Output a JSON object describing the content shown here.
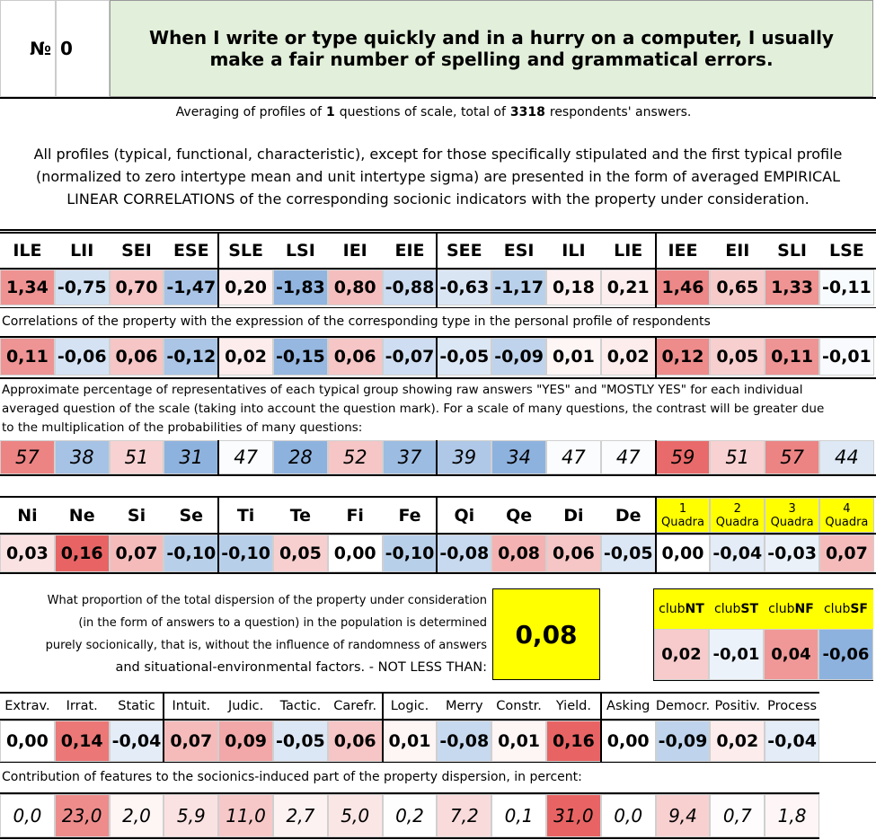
{
  "header": {
    "no": "№",
    "number": "0",
    "title": "When I write or type quickly and in a hurry on a computer, I usually make a fair number of spelling and grammatical errors."
  },
  "summary": {
    "pre": "Averaging of profiles of",
    "questions": "1",
    "mid": "questions of scale, total of",
    "respondents": "3318",
    "post": "respondents' answers."
  },
  "note": "All profiles (typical, functional, characteristic), except for those specifically stipulated and the first typical profile (normalized to zero intertype mean and unit intertype sigma) are presented in the form of averaged EMPIRICAL LINEAR CORRELATIONS of the corresponding socionic indicators with the property under consideration.",
  "types": {
    "headers": [
      "ILE",
      "LII",
      "SEI",
      "ESE",
      "SLE",
      "LSI",
      "IEI",
      "EIE",
      "SEE",
      "ESI",
      "ILI",
      "LIE",
      "IEE",
      "EII",
      "SLI",
      "LSE"
    ],
    "profile": [
      "1,34",
      "-0,75",
      "0,70",
      "-1,47",
      "0,20",
      "-1,83",
      "0,80",
      "-0,88",
      "-0,63",
      "-1,17",
      "0,18",
      "0,21",
      "1,46",
      "0,65",
      "1,33",
      "-0,11"
    ],
    "correlations_caption": "Correlations of the property with the expression of the corresponding type in the personal profile of respondents",
    "correlations": [
      "0,11",
      "-0,06",
      "0,06",
      "-0,12",
      "0,02",
      "-0,15",
      "0,06",
      "-0,07",
      "-0,05",
      "-0,09",
      "0,01",
      "0,02",
      "0,12",
      "0,05",
      "0,11",
      "-0,01"
    ],
    "percentages_caption": "Approximate percentage of representatives of each typical group showing raw answers \"YES\" and \"MOSTLY YES\" for each individual averaged question of the scale (taking into account the question mark). For a scale of many questions, the contrast will be greater due to the multiplication of the probabilities of many questions:",
    "percentages": [
      "57",
      "38",
      "51",
      "31",
      "47",
      "28",
      "52",
      "37",
      "39",
      "34",
      "47",
      "47",
      "59",
      "51",
      "57",
      "44"
    ]
  },
  "functions": {
    "headers": [
      "Ni",
      "Ne",
      "Si",
      "Se",
      "Ti",
      "Te",
      "Fi",
      "Fe",
      "Qi",
      "Qe",
      "Di",
      "De"
    ],
    "quadras": [
      {
        "number": "1",
        "label": "Quadra"
      },
      {
        "number": "2",
        "label": "Quadra"
      },
      {
        "number": "3",
        "label": "Quadra"
      },
      {
        "number": "4",
        "label": "Quadra"
      }
    ],
    "values": [
      "0,03",
      "0,16",
      "0,07",
      "-0,10",
      "-0,10",
      "0,05",
      "0,00",
      "-0,10",
      "-0,08",
      "0,08",
      "0,06",
      "-0,05",
      "0,00",
      "-0,04",
      "-0,03",
      "0,07"
    ]
  },
  "dispersion": {
    "lines": [
      "What proportion of the total dispersion of the property under consideration",
      "(in the form of answers to a question) in the population is determined",
      "purely socionically, that is, without the influence of randomness of answers",
      "and situational-environmental factors. - NOT LESS THAN:"
    ],
    "value": "0,08"
  },
  "clubs": {
    "headers": [
      {
        "prefix": "club",
        "suffix": "NT"
      },
      {
        "prefix": "club",
        "suffix": "ST"
      },
      {
        "prefix": "club",
        "suffix": "NF"
      },
      {
        "prefix": "club",
        "suffix": "SF"
      }
    ],
    "values": [
      "0,02",
      "-0,01",
      "0,04",
      "-0,06"
    ]
  },
  "features": {
    "headers": [
      "Extrav.",
      "Irrat.",
      "Static",
      "Intuit.",
      "Judic.",
      "Tactic.",
      "Carefr.",
      "Logic.",
      "Merry",
      "Constr.",
      "Yield.",
      "Asking",
      "Democr.",
      "Positiv.",
      "Process"
    ],
    "values": [
      "0,00",
      "0,14",
      "-0,04",
      "0,07",
      "0,09",
      "-0,05",
      "0,06",
      "0,01",
      "-0,08",
      "0,01",
      "0,16",
      "0,00",
      "-0,09",
      "0,02",
      "-0,04"
    ],
    "contributions_caption": "Contribution of features to the sociоnics-induced part of the property dispersion, in percent:",
    "contributions": [
      "0,0",
      "23,0",
      "2,0",
      "5,9",
      "11,0",
      "2,7",
      "5,0",
      "0,2",
      "7,2",
      "0,1",
      "31,0",
      "0,0",
      "9,4",
      "0,7",
      "1,8"
    ]
  }
}
